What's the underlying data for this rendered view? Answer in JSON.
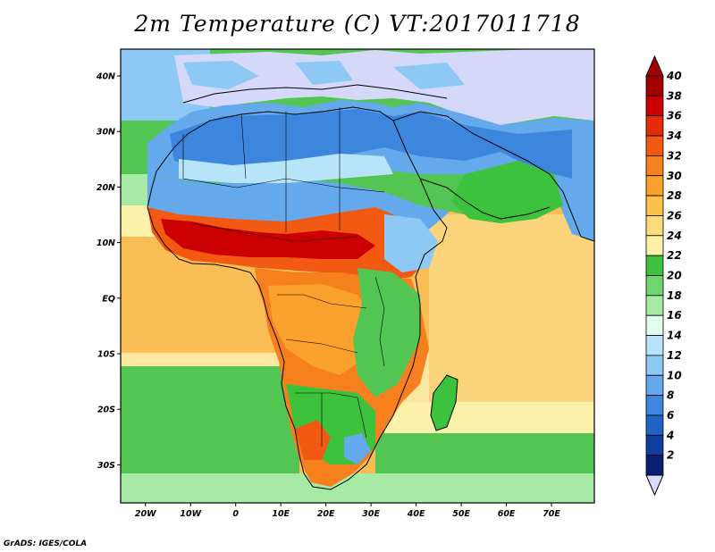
{
  "title": "2m Temperature (C) VT:2017011718",
  "credit": "GrADS: IGES/COLA",
  "map": {
    "lon_labels": [
      "20W",
      "10W",
      "0",
      "10E",
      "20E",
      "30E",
      "40E",
      "50E",
      "60E",
      "70E"
    ],
    "lat_labels": [
      "40N",
      "30N",
      "20N",
      "10N",
      "EQ",
      "10S",
      "20S",
      "30S"
    ]
  },
  "colorbar": {
    "labels": [
      "40",
      "38",
      "36",
      "34",
      "32",
      "30",
      "28",
      "26",
      "24",
      "22",
      "20",
      "18",
      "16",
      "14",
      "12",
      "10",
      "8",
      "6",
      "4",
      "2"
    ],
    "colors": [
      "#a50000",
      "#cc0000",
      "#e62b0a",
      "#f25a14",
      "#f6801e",
      "#f9a12c",
      "#fbc249",
      "#fcdb7c",
      "#fdf0a8",
      "#3dc23d",
      "#6fd66f",
      "#a6eaa6",
      "#e4fbf0",
      "#b8e4fa",
      "#8ec9f5",
      "#63a9ec",
      "#3c86dd",
      "#1f63c6",
      "#0d3ea0",
      "#0a1f72"
    ],
    "under_color": "#dcdcfa",
    "over_color": "#a50000"
  }
}
